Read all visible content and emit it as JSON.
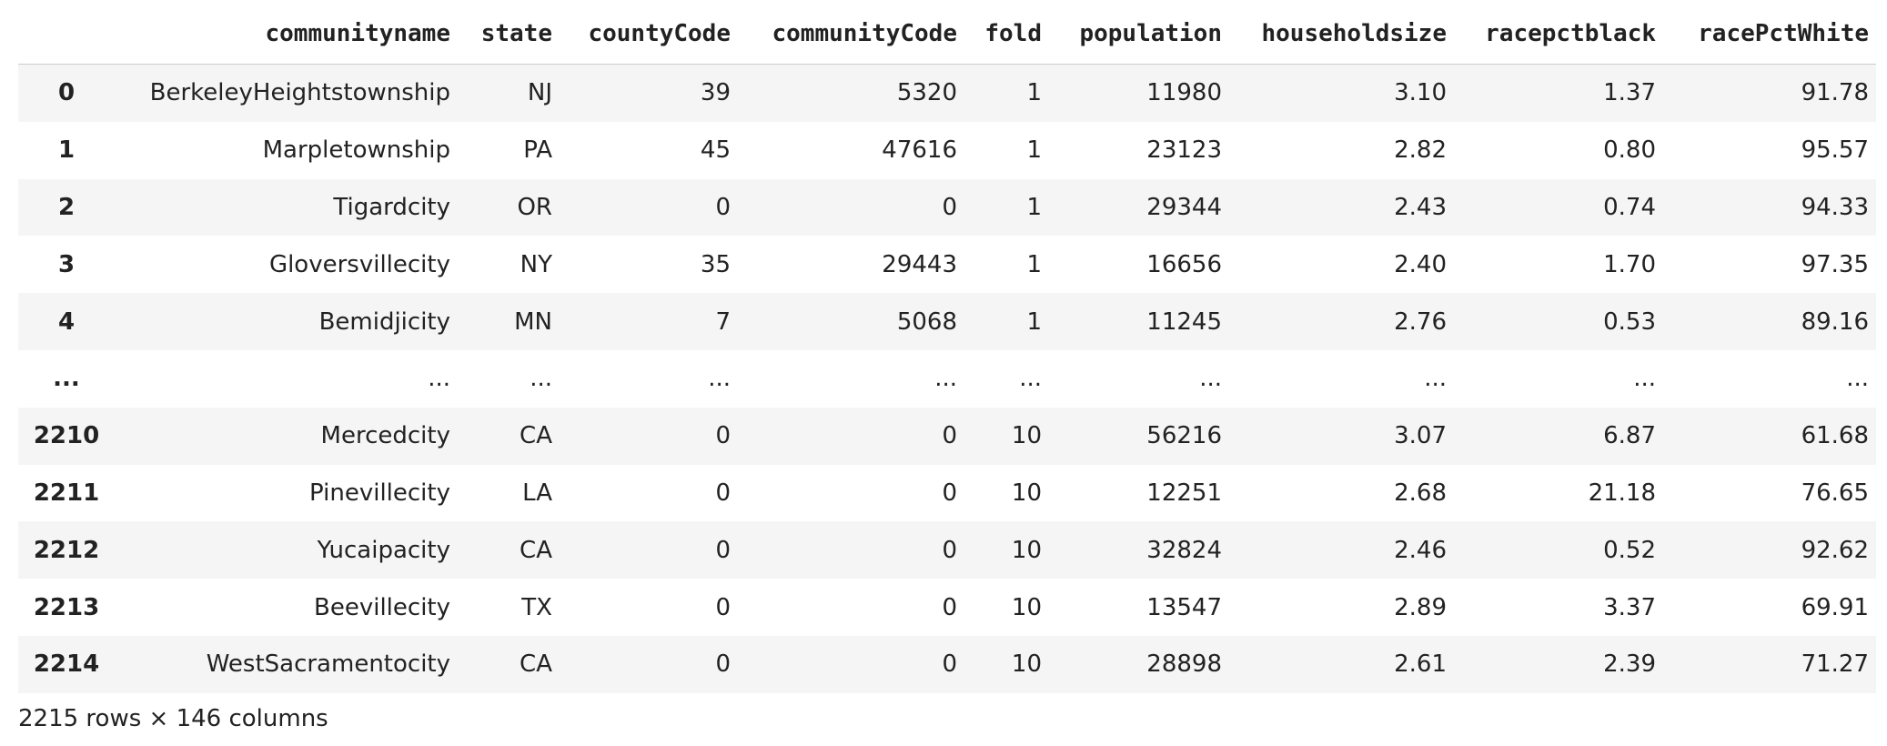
{
  "table": {
    "columns": [
      "communityname",
      "state",
      "countyCode",
      "communityCode",
      "fold",
      "population",
      "householdsize",
      "racepctblack",
      "racePctWhite"
    ],
    "rows": [
      {
        "index": "0",
        "cells": [
          "BerkeleyHeightstownship",
          "NJ",
          "39",
          "5320",
          "1",
          "11980",
          "3.10",
          "1.37",
          "91.78"
        ]
      },
      {
        "index": "1",
        "cells": [
          "Marpletownship",
          "PA",
          "45",
          "47616",
          "1",
          "23123",
          "2.82",
          "0.80",
          "95.57"
        ]
      },
      {
        "index": "2",
        "cells": [
          "Tigardcity",
          "OR",
          "0",
          "0",
          "1",
          "29344",
          "2.43",
          "0.74",
          "94.33"
        ]
      },
      {
        "index": "3",
        "cells": [
          "Gloversvillecity",
          "NY",
          "35",
          "29443",
          "1",
          "16656",
          "2.40",
          "1.70",
          "97.35"
        ]
      },
      {
        "index": "4",
        "cells": [
          "Bemidjicity",
          "MN",
          "7",
          "5068",
          "1",
          "11245",
          "2.76",
          "0.53",
          "89.16"
        ]
      },
      {
        "index": "...",
        "cells": [
          "...",
          "...",
          "...",
          "...",
          "...",
          "...",
          "...",
          "...",
          "..."
        ]
      },
      {
        "index": "2210",
        "cells": [
          "Mercedcity",
          "CA",
          "0",
          "0",
          "10",
          "56216",
          "3.07",
          "6.87",
          "61.68"
        ]
      },
      {
        "index": "2211",
        "cells": [
          "Pinevillecity",
          "LA",
          "0",
          "0",
          "10",
          "12251",
          "2.68",
          "21.18",
          "76.65"
        ]
      },
      {
        "index": "2212",
        "cells": [
          "Yucaipacity",
          "CA",
          "0",
          "0",
          "10",
          "32824",
          "2.46",
          "0.52",
          "92.62"
        ]
      },
      {
        "index": "2213",
        "cells": [
          "Beevillecity",
          "TX",
          "0",
          "0",
          "10",
          "13547",
          "2.89",
          "3.37",
          "69.91"
        ]
      },
      {
        "index": "2214",
        "cells": [
          "WestSacramentocity",
          "CA",
          "0",
          "0",
          "10",
          "28898",
          "2.61",
          "2.39",
          "71.27"
        ]
      }
    ],
    "footer": "2215 rows × 146 columns"
  }
}
